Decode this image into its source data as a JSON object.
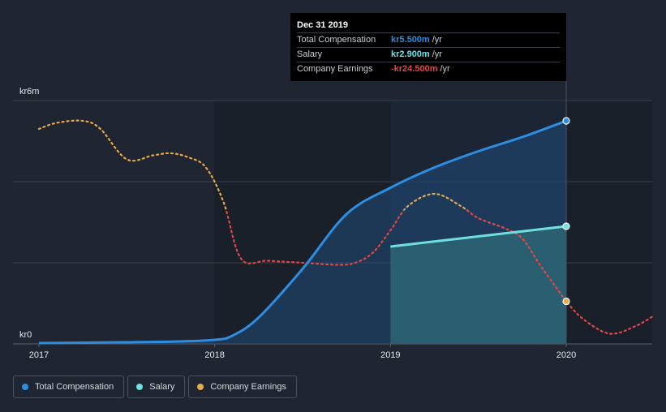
{
  "chart_data": {
    "type": "line",
    "y_axis": {
      "min": 0,
      "max": 6,
      "unit_labels": [
        "kr6m",
        "kr0"
      ]
    },
    "x_axis": {
      "min": 2017,
      "max": 2020.5,
      "tick_labels": [
        "2017",
        "2018",
        "2019",
        "2020"
      ]
    },
    "series": [
      {
        "name": "Total Compensation",
        "color": "#2e8de0",
        "style": "solid",
        "points": [
          [
            2017.0,
            0.02
          ],
          [
            2017.5,
            0.04
          ],
          [
            2017.8,
            0.06
          ],
          [
            2018.0,
            0.1
          ],
          [
            2018.1,
            0.2
          ],
          [
            2018.25,
            0.65
          ],
          [
            2018.5,
            1.85
          ],
          [
            2018.75,
            3.2
          ],
          [
            2019.0,
            3.85
          ],
          [
            2019.25,
            4.35
          ],
          [
            2019.5,
            4.75
          ],
          [
            2019.75,
            5.1
          ],
          [
            2020.0,
            5.5
          ]
        ]
      },
      {
        "name": "Salary",
        "color": "#6ee0e0",
        "style": "solid",
        "points": [
          [
            2019.0,
            2.4
          ],
          [
            2020.0,
            2.9
          ]
        ]
      },
      {
        "name": "Company Earnings",
        "color_positive": "#e7a94c",
        "color_negative": "#e04848",
        "style": "dotted",
        "points": [
          [
            2017.0,
            5.3
          ],
          [
            2017.1,
            5.45
          ],
          [
            2017.25,
            5.5
          ],
          [
            2017.35,
            5.3
          ],
          [
            2017.5,
            4.55
          ],
          [
            2017.65,
            4.65
          ],
          [
            2017.75,
            4.7
          ],
          [
            2017.85,
            4.6
          ],
          [
            2017.95,
            4.35
          ],
          [
            2018.05,
            3.5
          ],
          [
            2018.15,
            2.1
          ],
          [
            2018.3,
            2.05
          ],
          [
            2018.5,
            2.0
          ],
          [
            2018.7,
            1.95
          ],
          [
            2018.8,
            2.0
          ],
          [
            2018.9,
            2.25
          ],
          [
            2019.0,
            2.8
          ],
          [
            2019.1,
            3.4
          ],
          [
            2019.25,
            3.7
          ],
          [
            2019.4,
            3.4
          ],
          [
            2019.5,
            3.1
          ],
          [
            2019.65,
            2.85
          ],
          [
            2019.75,
            2.6
          ],
          [
            2019.85,
            1.95
          ],
          [
            2019.95,
            1.35
          ],
          [
            2020.0,
            1.05
          ],
          [
            2020.1,
            0.6
          ],
          [
            2020.25,
            0.25
          ],
          [
            2020.4,
            0.45
          ],
          [
            2020.5,
            0.7
          ]
        ]
      }
    ],
    "highlight_region": {
      "from": 2019.0,
      "to": 2020.0
    },
    "zero_line": 0.33
  },
  "tooltip": {
    "date": "Dec 31 2019",
    "rows": [
      {
        "name": "Total Compensation",
        "value": "kr5.500m",
        "unit": "/yr",
        "color": "#2e8de0"
      },
      {
        "name": "Salary",
        "value": "kr2.900m",
        "unit": "/yr",
        "color": "#6ee0e0"
      },
      {
        "name": "Company Earnings",
        "value": "-kr24.500m",
        "unit": "/yr",
        "color": "#e04848"
      }
    ]
  },
  "legend": [
    {
      "label": "Total Compensation",
      "color": "#2e8de0"
    },
    {
      "label": "Salary",
      "color": "#6ee0e0"
    },
    {
      "label": "Company Earnings",
      "color": "#e7a94c"
    }
  ]
}
